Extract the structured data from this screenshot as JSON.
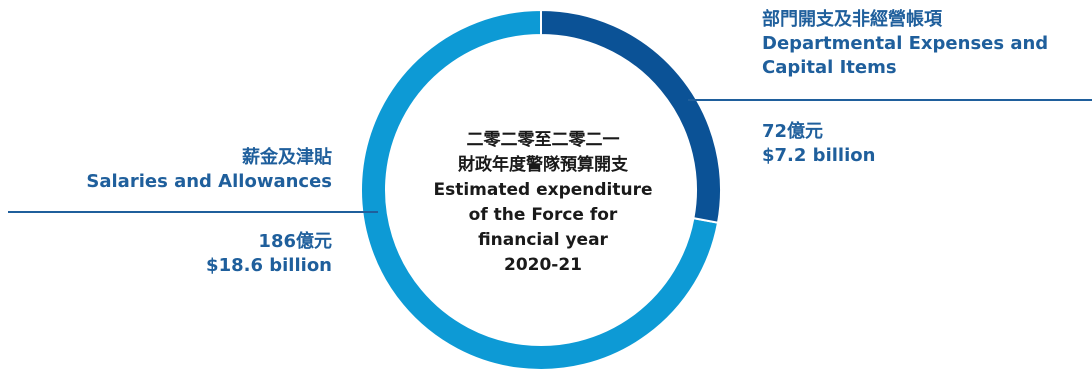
{
  "chart_data": {
    "type": "pie",
    "center_text": [
      "二零二零至二零二一",
      "財政年度警隊預算開支",
      "Estimated expenditure",
      "of the Force for",
      "financial year",
      "2020-21"
    ],
    "slices": [
      {
        "label_zh": "薪金及津貼",
        "label_en": "Salaries and Allowances",
        "value_zh": "186億元",
        "value_en": "$18.6 billion",
        "value": 18.6,
        "color": "#0d9ad5"
      },
      {
        "label_zh": "部門開支及非經營帳項",
        "label_en_line1": "Departmental Expenses and",
        "label_en_line2": "Capital Items",
        "value_zh": "72億元",
        "value_en": "$7.2 billion",
        "value": 7.2,
        "color": "#0b5296"
      }
    ],
    "label_color": "#1f5f9c",
    "leader_line_color": "#1f5f9c"
  }
}
